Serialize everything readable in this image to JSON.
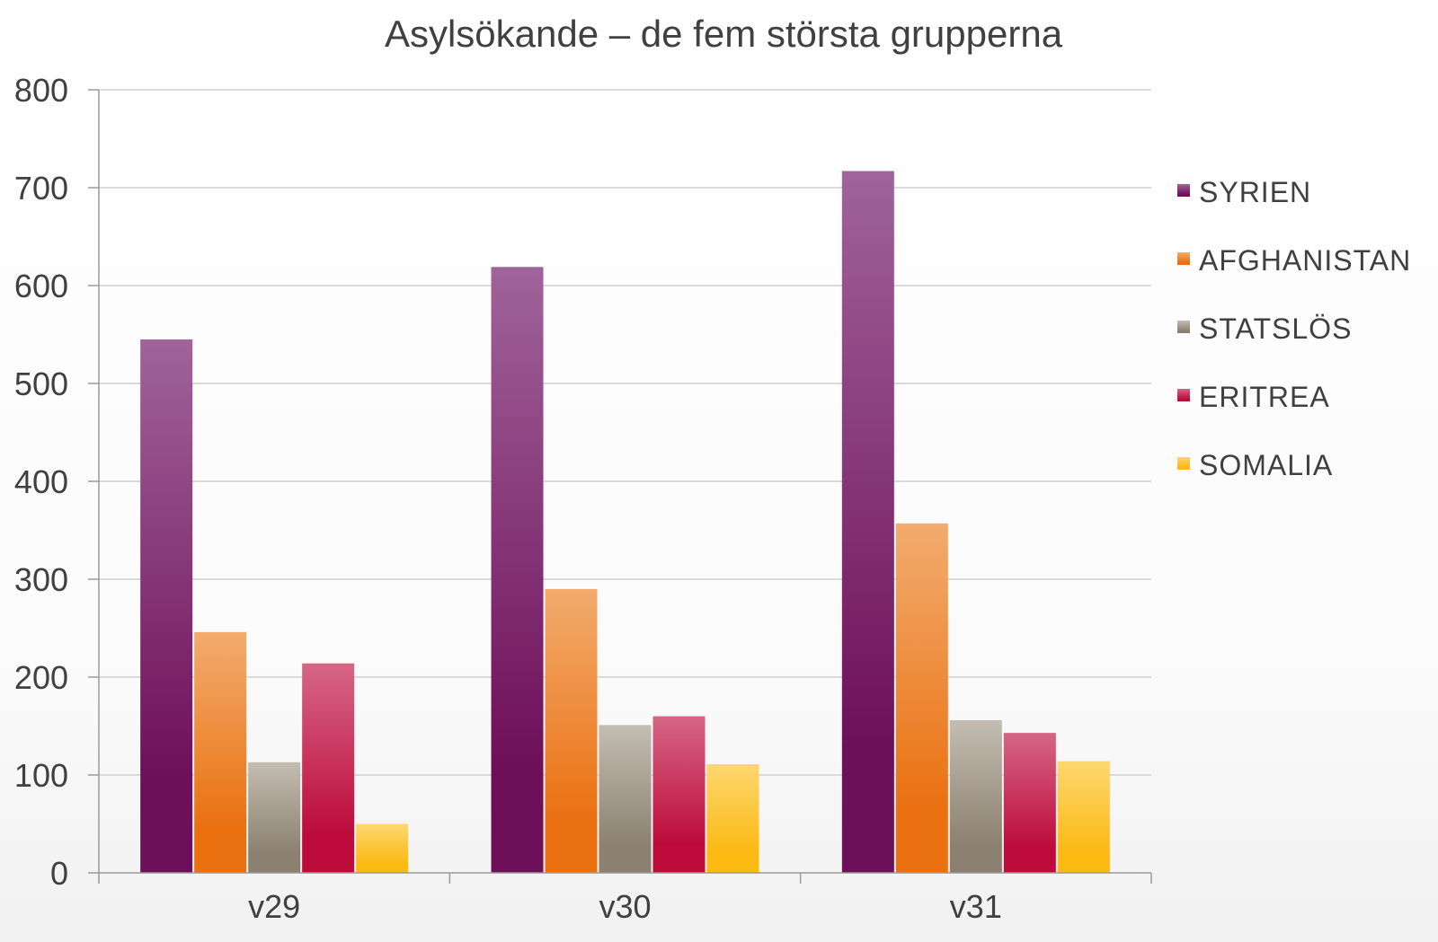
{
  "chart_data": {
    "type": "bar",
    "title": "Asylsökande – de fem största grupperna",
    "xlabel": "",
    "ylabel": "",
    "ylim": [
      0,
      800
    ],
    "yticks": [
      0,
      100,
      200,
      300,
      400,
      500,
      600,
      700,
      800
    ],
    "grid": true,
    "legend_position": "right",
    "categories": [
      "v29",
      "v30",
      "v31"
    ],
    "series": [
      {
        "name": "SYRIEN",
        "values": [
          545,
          619,
          717
        ],
        "color": "#6e0f5a",
        "color_light": "#a0639a"
      },
      {
        "name": "AFGHANISTAN",
        "values": [
          246,
          290,
          357
        ],
        "color": "#ea7010",
        "color_light": "#f2ac6e"
      },
      {
        "name": "STATSLÖS",
        "values": [
          113,
          151,
          156
        ],
        "color": "#8c8170",
        "color_light": "#c4bdb2"
      },
      {
        "name": "ERITREA",
        "values": [
          214,
          160,
          143
        ],
        "color": "#bd0b3b",
        "color_light": "#d66685"
      },
      {
        "name": "SOMALIA",
        "values": [
          50,
          111,
          114
        ],
        "color": "#fbb912",
        "color_light": "#fdd770"
      }
    ]
  }
}
